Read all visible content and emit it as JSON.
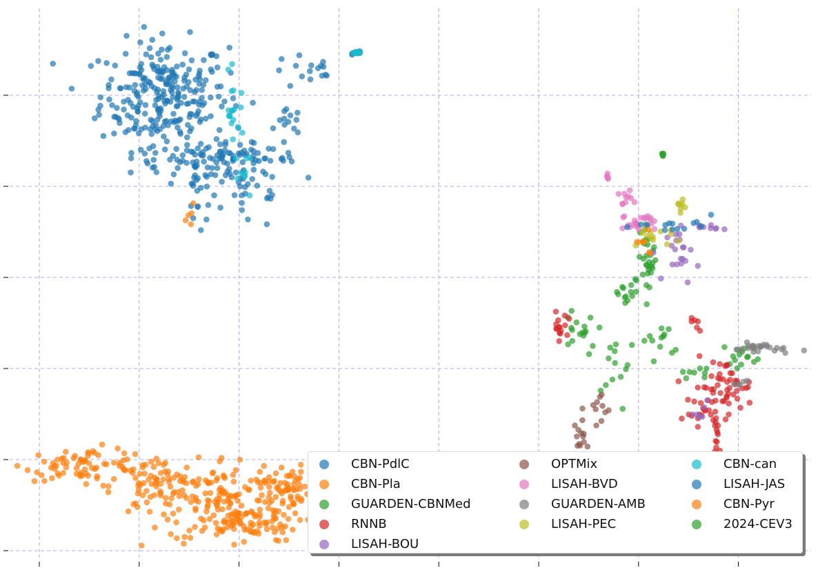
{
  "chart_data": {
    "type": "scatter",
    "title": "",
    "xlabel": "",
    "ylabel": "",
    "xlim": [
      -0.4,
      7.45
    ],
    "ylim": [
      -0.3,
      5.9
    ],
    "x_ticks": [
      0,
      1,
      2,
      3,
      4,
      5,
      6,
      7
    ],
    "y_ticks": [
      0,
      1,
      2,
      3,
      4,
      5
    ],
    "tick_labels_visible": false,
    "grid": true,
    "grid_style": "dashed",
    "grid_color": "#b3aaf0",
    "legend_placement": "lower-right",
    "legend_columns": 3,
    "series": [
      {
        "name": "CBN-PdlC",
        "color": "#1f77b4",
        "clusters": [
          {
            "cx": 1.25,
            "cy": 5.0,
            "sx": 0.32,
            "sy": 0.3,
            "n": 260
          },
          {
            "cx": 1.75,
            "cy": 4.3,
            "sx": 0.42,
            "sy": 0.08,
            "n": 90
          },
          {
            "cx": 2.05,
            "cy": 4.05,
            "sx": 0.25,
            "sy": 0.28,
            "n": 45
          },
          {
            "cx": 2.7,
            "cy": 5.25,
            "sx": 0.2,
            "sy": 0.1,
            "n": 16
          },
          {
            "cx": 2.5,
            "cy": 4.7,
            "sx": 0.06,
            "sy": 0.07,
            "n": 12
          },
          {
            "cx": 1.6,
            "cy": 3.85,
            "sx": 0.08,
            "sy": 0.2,
            "n": 18
          },
          {
            "cx": 3.2,
            "cy": 5.47,
            "sx": 0.03,
            "sy": 0.01,
            "n": 8
          }
        ]
      },
      {
        "name": "CBN-Pla",
        "color": "#ff7f0e",
        "clusters": [
          {
            "cx": 0.45,
            "cy": 0.95,
            "sx": 0.3,
            "sy": 0.09,
            "n": 70
          },
          {
            "cx": 1.15,
            "cy": 0.7,
            "sx": 0.22,
            "sy": 0.16,
            "n": 80
          },
          {
            "cx": 1.85,
            "cy": 0.55,
            "sx": 0.28,
            "sy": 0.25,
            "n": 130
          },
          {
            "cx": 2.1,
            "cy": 0.3,
            "sx": 0.25,
            "sy": 0.1,
            "n": 60
          },
          {
            "cx": 2.45,
            "cy": 0.7,
            "sx": 0.12,
            "sy": 0.12,
            "n": 60
          },
          {
            "cx": 1.5,
            "cy": 3.6,
            "sx": 0.05,
            "sy": 0.1,
            "n": 5
          }
        ]
      },
      {
        "name": "GUARDEN-CBNMed",
        "color": "#2ca02c",
        "clusters": [
          {
            "cx": 6.1,
            "cy": 3.2,
            "sx": 0.04,
            "sy": 0.2,
            "n": 25
          },
          {
            "cx": 5.9,
            "cy": 2.8,
            "sx": 0.08,
            "sy": 0.1,
            "n": 15
          },
          {
            "cx": 5.5,
            "cy": 2.4,
            "sx": 0.2,
            "sy": 0.15,
            "n": 20
          },
          {
            "cx": 5.8,
            "cy": 1.95,
            "sx": 0.08,
            "sy": 0.15,
            "n": 10
          },
          {
            "cx": 6.2,
            "cy": 2.3,
            "sx": 0.08,
            "sy": 0.1,
            "n": 12
          },
          {
            "cx": 7.05,
            "cy": 2.15,
            "sx": 0.1,
            "sy": 0.07,
            "n": 15
          },
          {
            "cx": 6.6,
            "cy": 1.95,
            "sx": 0.08,
            "sy": 0.03,
            "n": 8
          },
          {
            "cx": 6.24,
            "cy": 4.35,
            "sx": 0.01,
            "sy": 0.01,
            "n": 5
          }
        ]
      },
      {
        "name": "RNNB",
        "color": "#d62728",
        "clusters": [
          {
            "cx": 5.2,
            "cy": 2.45,
            "sx": 0.04,
            "sy": 0.08,
            "n": 15
          },
          {
            "cx": 6.85,
            "cy": 1.8,
            "sx": 0.15,
            "sy": 0.15,
            "n": 50
          },
          {
            "cx": 6.7,
            "cy": 1.5,
            "sx": 0.12,
            "sy": 0.1,
            "n": 20
          },
          {
            "cx": 6.78,
            "cy": 1.25,
            "sx": 0.03,
            "sy": 0.1,
            "n": 10
          },
          {
            "cx": 6.6,
            "cy": 2.45,
            "sx": 0.05,
            "sy": 0.05,
            "n": 6
          }
        ]
      },
      {
        "name": "LISAH-BOU",
        "color": "#9467bd",
        "clusters": [
          {
            "cx": 6.45,
            "cy": 3.25,
            "sx": 0.08,
            "sy": 0.15,
            "n": 20
          },
          {
            "cx": 6.6,
            "cy": 3.55,
            "sx": 0.1,
            "sy": 0.02,
            "n": 10
          },
          {
            "cx": 6.65,
            "cy": 1.6,
            "sx": 0.05,
            "sy": 0.06,
            "n": 6
          }
        ]
      },
      {
        "name": "OPTMix",
        "color": "#8c564b",
        "clusters": [
          {
            "cx": 5.35,
            "cy": 0.97,
            "sx": 0.15,
            "sy": 0.02,
            "n": 15
          },
          {
            "cx": 5.45,
            "cy": 1.2,
            "sx": 0.05,
            "sy": 0.15,
            "n": 18
          },
          {
            "cx": 5.6,
            "cy": 1.55,
            "sx": 0.05,
            "sy": 0.15,
            "n": 10
          },
          {
            "cx": 5.65,
            "cy": 0.9,
            "sx": 0.04,
            "sy": 0.05,
            "n": 8
          }
        ]
      },
      {
        "name": "LISAH-BVD",
        "color": "#e377c2",
        "clusters": [
          {
            "cx": 5.7,
            "cy": 4.1,
            "sx": 0.02,
            "sy": 0.03,
            "n": 5
          },
          {
            "cx": 5.85,
            "cy": 3.85,
            "sx": 0.04,
            "sy": 0.08,
            "n": 12
          },
          {
            "cx": 6.0,
            "cy": 3.6,
            "sx": 0.08,
            "sy": 0.05,
            "n": 22
          }
        ]
      },
      {
        "name": "GUARDEN-AMB",
        "color": "#7f7f7f",
        "clusters": [
          {
            "cx": 7.25,
            "cy": 2.22,
            "sx": 0.15,
            "sy": 0.03,
            "n": 25
          },
          {
            "cx": 7.0,
            "cy": 1.85,
            "sx": 0.05,
            "sy": 0.1,
            "n": 5
          }
        ]
      },
      {
        "name": "LISAH-PEC",
        "color": "#bcbd22",
        "clusters": [
          {
            "cx": 6.42,
            "cy": 3.78,
            "sx": 0.02,
            "sy": 0.03,
            "n": 8
          },
          {
            "cx": 6.15,
            "cy": 3.45,
            "sx": 0.15,
            "sy": 0.07,
            "n": 15
          }
        ]
      },
      {
        "name": "CBN-can",
        "color": "#17becf",
        "clusters": [
          {
            "cx": 1.95,
            "cy": 4.8,
            "sx": 0.05,
            "sy": 0.2,
            "n": 18
          },
          {
            "cx": 2.05,
            "cy": 4.15,
            "sx": 0.05,
            "sy": 0.1,
            "n": 8
          },
          {
            "cx": 3.2,
            "cy": 5.47,
            "sx": 0.02,
            "sy": 0.01,
            "n": 6
          }
        ]
      },
      {
        "name": "LISAH-JAS",
        "color": "#1f77b4",
        "clusters": [
          {
            "cx": 6.4,
            "cy": 3.55,
            "sx": 0.2,
            "sy": 0.06,
            "n": 14
          }
        ]
      },
      {
        "name": "CBN-Pyr",
        "color": "#ff7f0e",
        "clusters": [
          {
            "cx": 6.05,
            "cy": 3.35,
            "sx": 0.06,
            "sy": 0.06,
            "n": 6
          }
        ]
      },
      {
        "name": "2024-CEV3",
        "color": "#2ca02c",
        "clusters": [
          {
            "cx": 6.1,
            "cy": 3.1,
            "sx": 0.05,
            "sy": 0.05,
            "n": 4
          }
        ]
      }
    ]
  },
  "legend": {
    "items": [
      {
        "label": "CBN-PdlC",
        "color": "#1f77b4"
      },
      {
        "label": "OPTMix",
        "color": "#8c564b"
      },
      {
        "label": "CBN-can",
        "color": "#17becf"
      },
      {
        "label": "CBN-Pla",
        "color": "#ff7f0e"
      },
      {
        "label": "LISAH-BVD",
        "color": "#e377c2"
      },
      {
        "label": "LISAH-JAS",
        "color": "#1f77b4"
      },
      {
        "label": "GUARDEN-CBNMed",
        "color": "#2ca02c"
      },
      {
        "label": "GUARDEN-AMB",
        "color": "#7f7f7f"
      },
      {
        "label": "CBN-Pyr",
        "color": "#ff7f0e"
      },
      {
        "label": "RNNB",
        "color": "#d62728"
      },
      {
        "label": "LISAH-PEC",
        "color": "#bcbd22"
      },
      {
        "label": "2024-CEV3",
        "color": "#2ca02c"
      },
      {
        "label": "LISAH-BOU",
        "color": "#9467bd"
      }
    ]
  }
}
